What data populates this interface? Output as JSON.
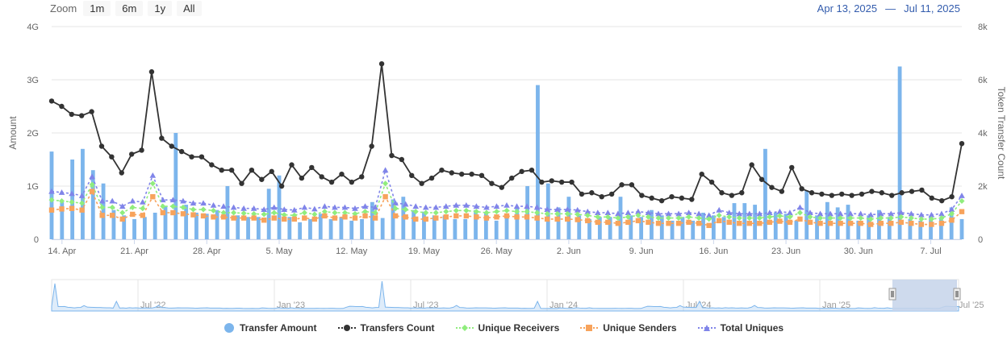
{
  "toolbar": {
    "zoom_label": "Zoom",
    "zoom_buttons": [
      "1m",
      "6m",
      "1y",
      "All"
    ],
    "range_from": "Apr 13, 2025",
    "range_sep": "—",
    "range_to": "Jul 11, 2025"
  },
  "colors": {
    "transfer_amount": "#7cb5ec",
    "transfers_count": "#333333",
    "unique_receivers": "#90ed7d",
    "unique_senders": "#f7a35c",
    "total_uniques": "#8085e9",
    "navigator_fill": "#c6d3ea"
  },
  "chart_data": {
    "type": "bar",
    "title": "",
    "x_tick_labels": [
      "14. Apr",
      "21. Apr",
      "28. Apr",
      "5. May",
      "12. May",
      "19. May",
      "26. May",
      "2. Jun",
      "9. Jun",
      "16. Jun",
      "23. Jun",
      "30. Jun",
      "7. Jul"
    ],
    "y_left": {
      "label": "Amount",
      "ticks": [
        "0",
        "1G",
        "2G",
        "3G",
        "4G"
      ],
      "range": [
        0,
        4
      ]
    },
    "y_right": {
      "label": "Token Transfer Count",
      "ticks": [
        "0",
        "2k",
        "4k",
        "6k",
        "8k"
      ],
      "range": [
        0,
        8000
      ]
    },
    "x_range_days": [
      0,
      88
    ],
    "series": [
      {
        "name": "Transfer Amount",
        "type": "column",
        "axis": "left",
        "unit": "G",
        "values": [
          1.65,
          0.7,
          1.5,
          1.7,
          1.3,
          1.05,
          0.55,
          0.45,
          0.38,
          0.42,
          0.5,
          0.62,
          2.0,
          0.65,
          0.5,
          0.48,
          0.55,
          1.0,
          0.45,
          0.42,
          0.42,
          0.95,
          1.2,
          0.42,
          0.32,
          0.38,
          0.48,
          0.38,
          0.42,
          0.35,
          0.38,
          0.7,
          0.4,
          0.75,
          0.8,
          0.55,
          0.52,
          0.45,
          0.45,
          0.38,
          0.38,
          0.55,
          0.5,
          0.35,
          0.4,
          0.6,
          1.0,
          2.9,
          1.05,
          0.6,
          0.8,
          0.45,
          0.38,
          0.42,
          0.42,
          0.8,
          0.45,
          0.42,
          0.55,
          0.45,
          0.35,
          0.42,
          0.35,
          0.5,
          0.45,
          0.42,
          0.68,
          0.68,
          0.65,
          1.7,
          0.5,
          0.48,
          0.35,
          0.92,
          0.45,
          0.7,
          0.6,
          0.65,
          0.35,
          0.45,
          0.55,
          0.42,
          3.25,
          0.38,
          0.35,
          0.42,
          0.38,
          0.6,
          0.38
        ]
      },
      {
        "name": "Transfers Count",
        "type": "line",
        "axis": "right",
        "values": [
          5200,
          5000,
          4700,
          4650,
          4800,
          3500,
          3100,
          2500,
          3200,
          3350,
          6300,
          3800,
          3500,
          3300,
          3100,
          3100,
          2800,
          2600,
          2600,
          2100,
          2600,
          2250,
          2550,
          2000,
          2800,
          2300,
          2700,
          2350,
          2150,
          2450,
          2150,
          2350,
          3500,
          6600,
          3150,
          3000,
          2400,
          2100,
          2300,
          2600,
          2500,
          2450,
          2450,
          2400,
          2100,
          1950,
          2300,
          2550,
          2600,
          2150,
          2200,
          2150,
          2150,
          1700,
          1750,
          1600,
          1700,
          2050,
          2050,
          1650,
          1550,
          1450,
          1600,
          1550,
          1500,
          2450,
          2150,
          1750,
          1650,
          1750,
          2800,
          2250,
          1950,
          1800,
          2700,
          1900,
          1750,
          1700,
          1650,
          1700,
          1650,
          1700,
          1800,
          1750,
          1650,
          1750,
          1800,
          1850,
          1550,
          1450,
          1600,
          3600
        ]
      },
      {
        "name": "Unique Receivers",
        "type": "line",
        "axis": "left",
        "unit": "G",
        "values": [
          0.74,
          0.72,
          0.7,
          0.68,
          1.03,
          0.6,
          0.6,
          0.5,
          0.6,
          0.58,
          1.05,
          0.62,
          0.62,
          0.6,
          0.56,
          0.56,
          0.54,
          0.5,
          0.5,
          0.49,
          0.48,
          0.47,
          0.5,
          0.46,
          0.45,
          0.5,
          0.47,
          0.52,
          0.5,
          0.5,
          0.48,
          0.52,
          0.5,
          1.05,
          0.58,
          0.56,
          0.52,
          0.5,
          0.5,
          0.52,
          0.54,
          0.54,
          0.52,
          0.5,
          0.52,
          0.54,
          0.52,
          0.52,
          0.5,
          0.48,
          0.48,
          0.48,
          0.47,
          0.45,
          0.42,
          0.42,
          0.4,
          0.42,
          0.45,
          0.42,
          0.4,
          0.4,
          0.4,
          0.42,
          0.4,
          0.38,
          0.45,
          0.42,
          0.4,
          0.4,
          0.4,
          0.42,
          0.44,
          0.42,
          0.5,
          0.42,
          0.4,
          0.4,
          0.4,
          0.4,
          0.4,
          0.38,
          0.4,
          0.4,
          0.42,
          0.4,
          0.38,
          0.38,
          0.4,
          0.48,
          0.72
        ]
      },
      {
        "name": "Unique Senders",
        "type": "line",
        "axis": "left",
        "unit": "G",
        "values": [
          0.55,
          0.57,
          0.58,
          0.55,
          0.9,
          0.45,
          0.45,
          0.38,
          0.47,
          0.45,
          0.8,
          0.5,
          0.5,
          0.48,
          0.46,
          0.44,
          0.42,
          0.42,
          0.4,
          0.4,
          0.4,
          0.36,
          0.4,
          0.38,
          0.38,
          0.4,
          0.38,
          0.44,
          0.4,
          0.42,
          0.4,
          0.44,
          0.4,
          0.8,
          0.44,
          0.42,
          0.38,
          0.38,
          0.4,
          0.42,
          0.44,
          0.44,
          0.42,
          0.4,
          0.42,
          0.44,
          0.42,
          0.42,
          0.4,
          0.38,
          0.38,
          0.38,
          0.37,
          0.35,
          0.32,
          0.32,
          0.3,
          0.32,
          0.35,
          0.32,
          0.3,
          0.3,
          0.3,
          0.32,
          0.3,
          0.26,
          0.35,
          0.32,
          0.3,
          0.3,
          0.3,
          0.32,
          0.34,
          0.32,
          0.38,
          0.32,
          0.3,
          0.3,
          0.3,
          0.3,
          0.3,
          0.28,
          0.3,
          0.3,
          0.32,
          0.3,
          0.28,
          0.28,
          0.3,
          0.36,
          0.52
        ]
      },
      {
        "name": "Total Uniques",
        "type": "line",
        "axis": "left",
        "unit": "G",
        "values": [
          0.9,
          0.88,
          0.86,
          0.82,
          1.18,
          0.72,
          0.72,
          0.62,
          0.72,
          0.7,
          1.2,
          0.74,
          0.74,
          0.72,
          0.68,
          0.68,
          0.64,
          0.62,
          0.6,
          0.58,
          0.58,
          0.56,
          0.6,
          0.56,
          0.55,
          0.6,
          0.57,
          0.62,
          0.6,
          0.6,
          0.58,
          0.62,
          0.6,
          1.3,
          0.68,
          0.66,
          0.62,
          0.6,
          0.6,
          0.62,
          0.64,
          0.64,
          0.62,
          0.6,
          0.62,
          0.64,
          0.62,
          0.62,
          0.6,
          0.56,
          0.56,
          0.56,
          0.55,
          0.52,
          0.5,
          0.5,
          0.48,
          0.5,
          0.52,
          0.5,
          0.48,
          0.48,
          0.48,
          0.5,
          0.48,
          0.45,
          0.55,
          0.5,
          0.48,
          0.48,
          0.48,
          0.5,
          0.52,
          0.5,
          0.6,
          0.5,
          0.48,
          0.48,
          0.48,
          0.48,
          0.48,
          0.46,
          0.48,
          0.48,
          0.5,
          0.48,
          0.46,
          0.46,
          0.48,
          0.56,
          0.82
        ]
      }
    ],
    "navigator": {
      "tick_labels": [
        "Jul '22",
        "Jan '23",
        "Jul '23",
        "Jan '24",
        "Jul '24",
        "Jan '25",
        "Jul '25"
      ]
    },
    "legend": {
      "placement": "bottom-center"
    }
  }
}
